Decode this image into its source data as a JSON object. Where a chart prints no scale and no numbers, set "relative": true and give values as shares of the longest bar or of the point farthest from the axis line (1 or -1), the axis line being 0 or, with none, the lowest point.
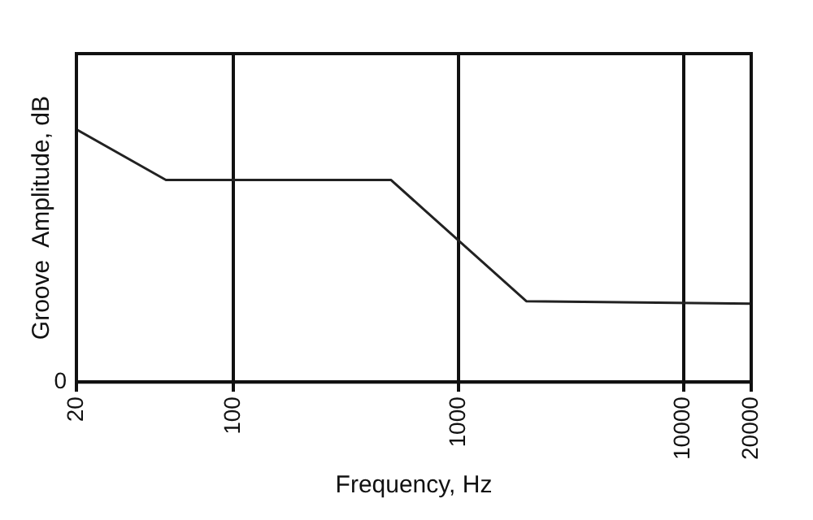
{
  "chart_data": {
    "type": "line",
    "xlabel": "Frequency, Hz",
    "ylabel": "Groove  Amplitude, dB",
    "relative": true,
    "log": "x",
    "grid": "x",
    "marker": "none",
    "line_style": "solid",
    "x": [
      20,
      50,
      500,
      2000,
      20000
    ],
    "values": [
      1,
      0.8,
      0.8,
      0.32,
      0.31
    ],
    "color": "#222222",
    "xlim": [
      20,
      20000
    ],
    "xticks": [
      20,
      100,
      1000,
      10000,
      20000
    ],
    "annotations": [
      "0"
    ]
  }
}
